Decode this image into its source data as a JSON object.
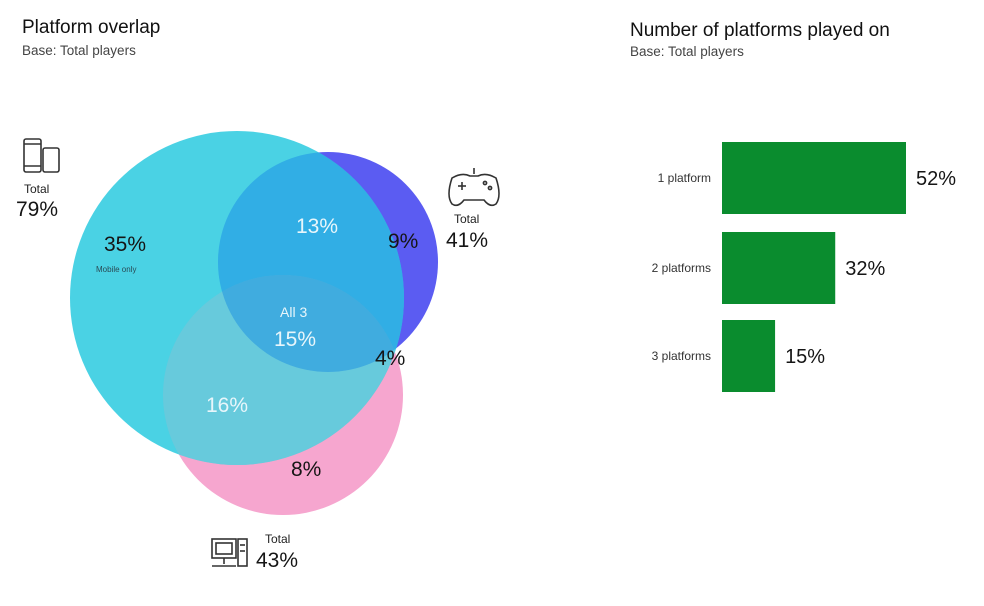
{
  "left": {
    "title": "Platform overlap",
    "subtitle": "Base: Total players"
  },
  "right": {
    "title": "Number of platforms played on",
    "subtitle": "Base: Total players"
  },
  "colors": {
    "mobile": "#3ccfe2",
    "console": "#5b5cf2",
    "pc": "#f6a6cf",
    "bar": "#0a8c2e"
  },
  "icons": {
    "mobile": "mobile-devices-icon",
    "console": "gamepad-icon",
    "pc": "desktop-computer-icon"
  },
  "chart_data": [
    {
      "type": "venn",
      "sets": [
        {
          "name": "Mobile",
          "total_label": "Total",
          "total_pct": "79%"
        },
        {
          "name": "Console",
          "total_label": "Total",
          "total_pct": "41%"
        },
        {
          "name": "PC",
          "total_label": "Total",
          "total_pct": "43%"
        }
      ],
      "regions": {
        "mobile_only": {
          "pct": "35%",
          "note": "Mobile only"
        },
        "mobile_console": {
          "pct": "13%"
        },
        "console_only": {
          "pct": "9%"
        },
        "all3": {
          "label": "All 3",
          "pct": "15%"
        },
        "console_pc": {
          "pct": "4%"
        },
        "mobile_pc": {
          "pct": "16%"
        },
        "pc_only": {
          "pct": "8%"
        }
      }
    },
    {
      "type": "bar",
      "orientation": "horizontal",
      "categories": [
        "1 platform",
        "2 platforms",
        "3 platforms"
      ],
      "values": [
        52,
        32,
        15
      ],
      "value_labels": [
        "52%",
        "32%",
        "15%"
      ]
    }
  ]
}
